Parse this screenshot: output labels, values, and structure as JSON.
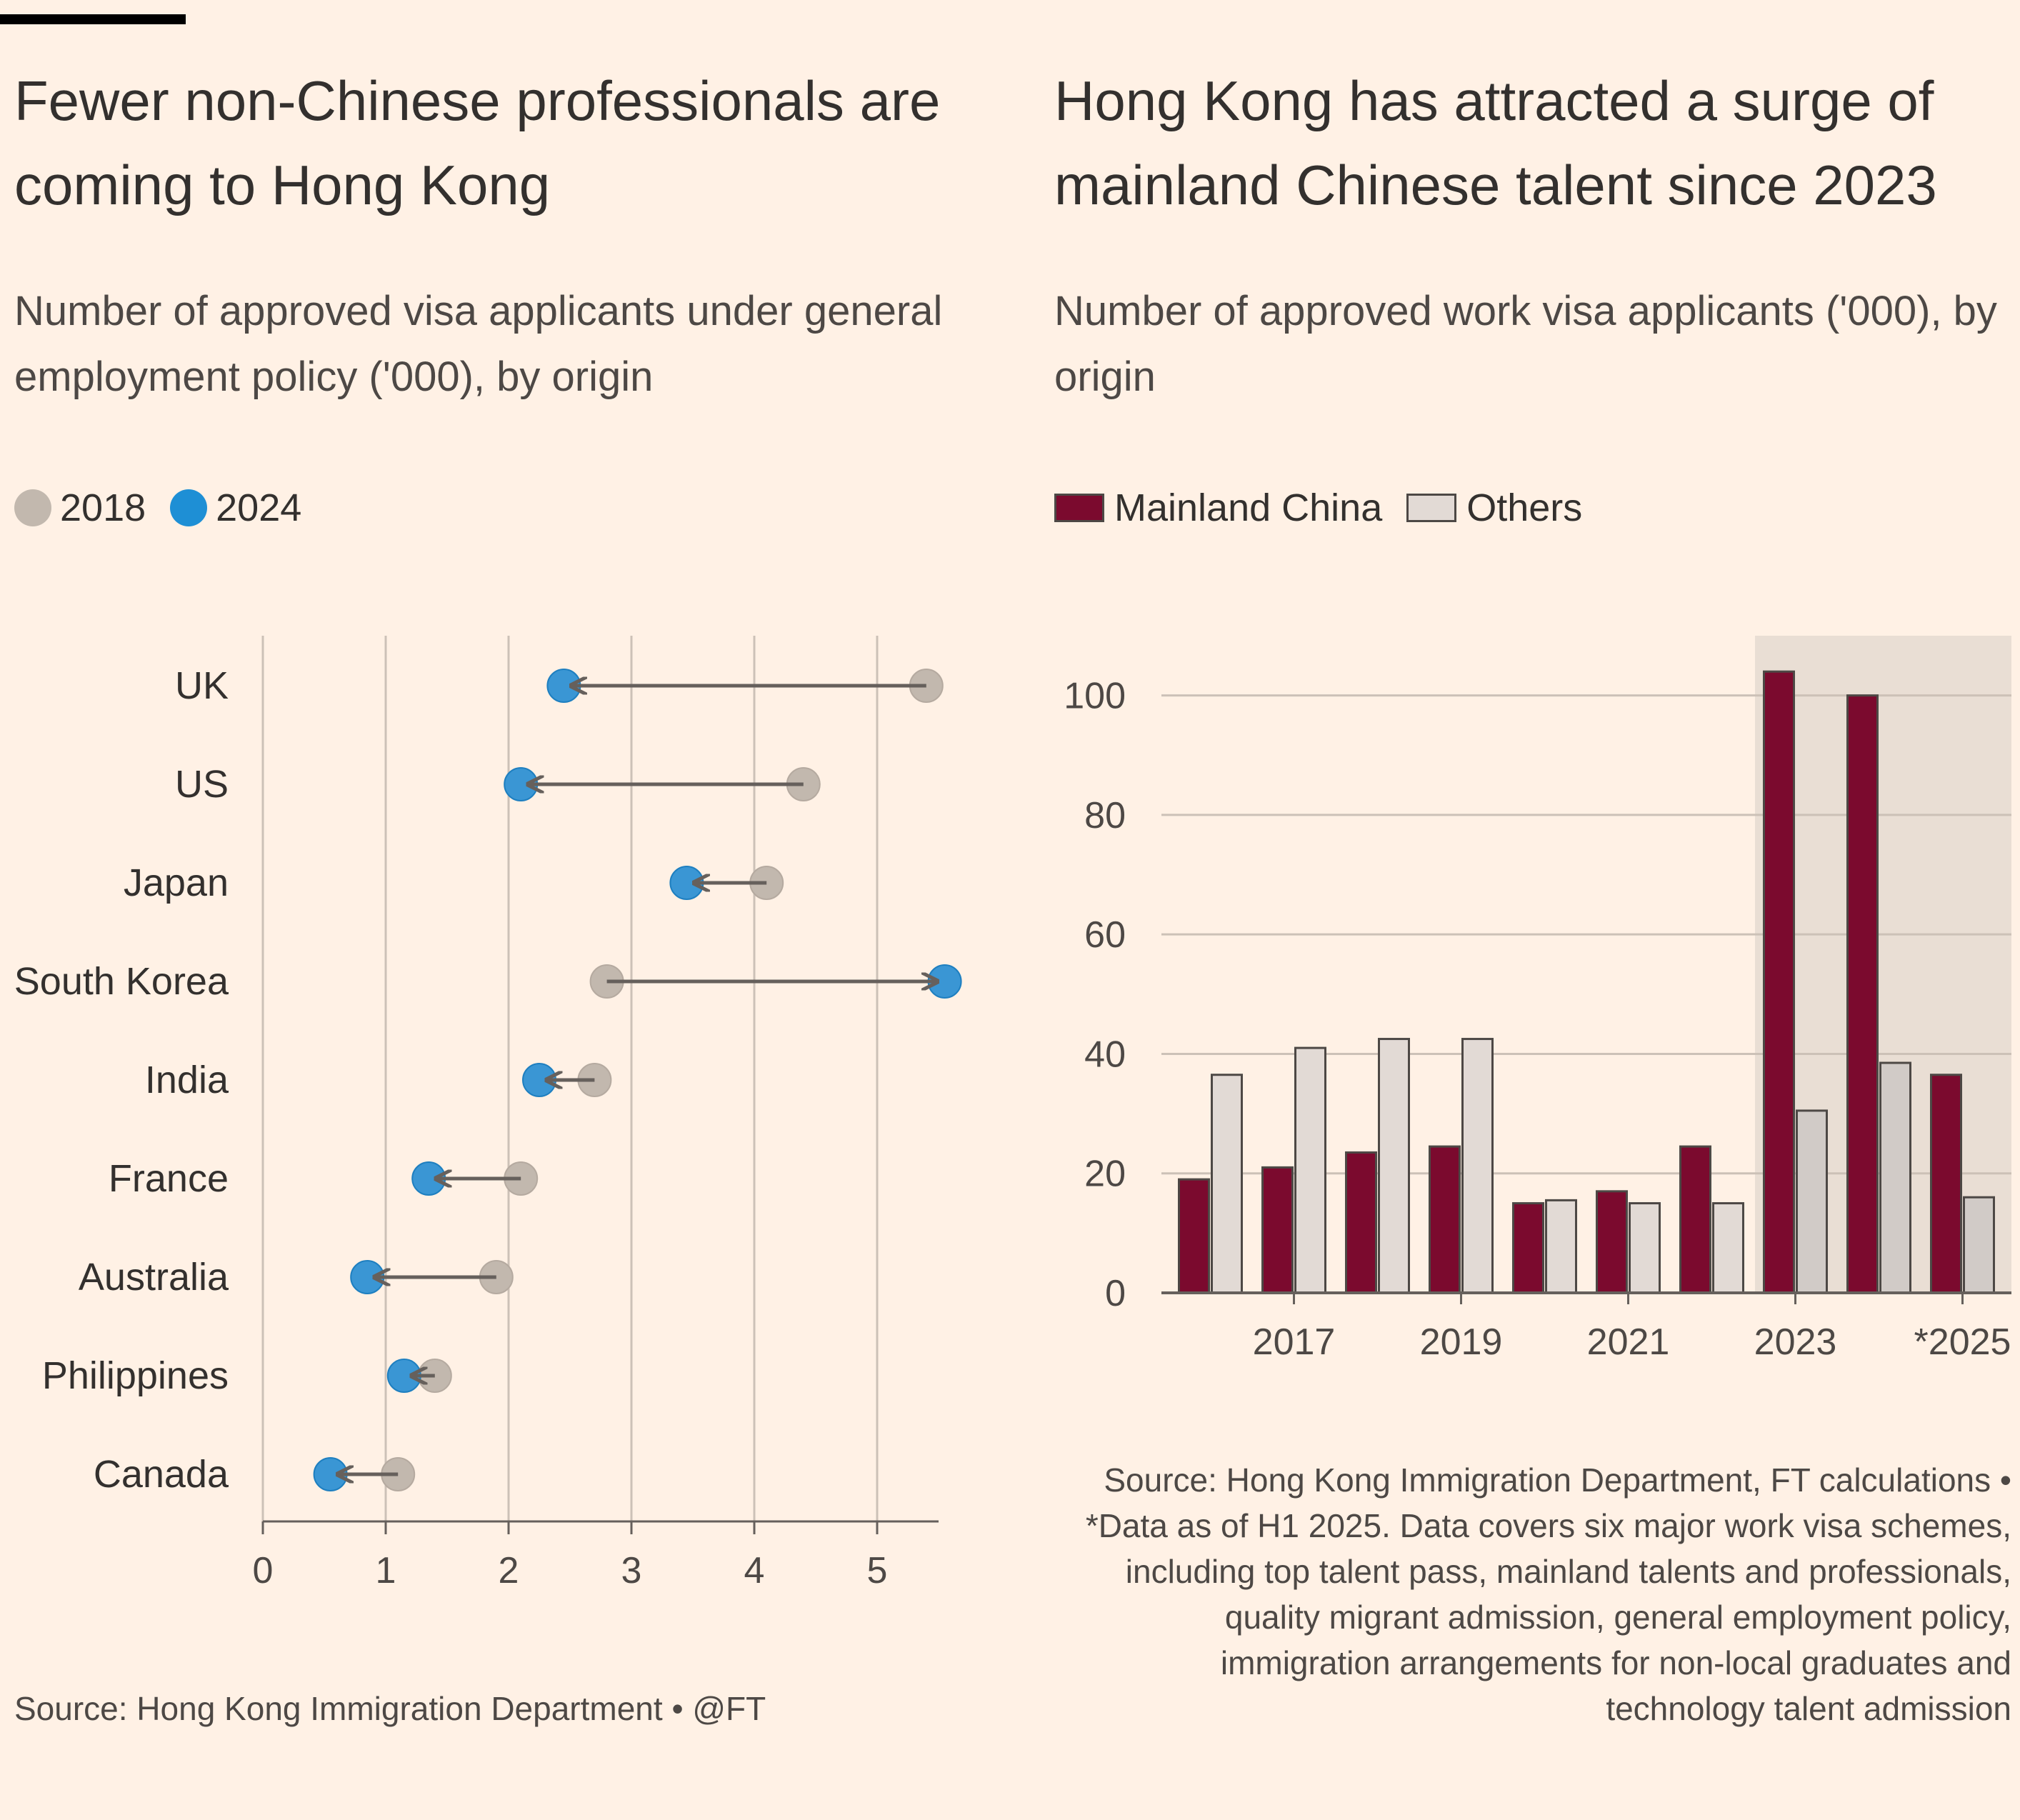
{
  "left_chart": {
    "title": "Fewer non-Chinese professionals are coming to Hong Kong",
    "subtitle": "Number of approved visa applicants under general employment policy ('000), by origin",
    "legend": [
      {
        "label": "2018",
        "color": "#c2b8ae"
      },
      {
        "label": "2024",
        "color": "#1e8fd5"
      }
    ],
    "source": "Source: Hong Kong Immigration Department • @FT"
  },
  "right_chart": {
    "title": "Hong Kong has attracted a surge of mainland Chinese talent since 2023",
    "subtitle": "Number of approved work visa applicants ('000), by origin",
    "legend": [
      {
        "label": "Mainland China",
        "color": "#7b0a2e"
      },
      {
        "label": "Others",
        "color": "#e2dad5"
      }
    ],
    "source": "Source: Hong Kong Immigration Department, FT calculations • *Data as of H1 2025. Data covers six major work visa schemes, including top talent pass, mainland talents and professionals, quality migrant admission, general employment policy, immigration arrangements for non-local graduates and technology talent admission"
  },
  "chart_data": [
    {
      "type": "dot-arrow",
      "title": "Fewer non-Chinese professionals are coming to Hong Kong",
      "xlabel": "",
      "ylabel": "",
      "xlim": [
        0,
        5.5
      ],
      "xticks": [
        0,
        1,
        2,
        3,
        4,
        5
      ],
      "series_names": [
        "2018",
        "2024"
      ],
      "categories": [
        "UK",
        "US",
        "Japan",
        "South Korea",
        "India",
        "France",
        "Australia",
        "Philippines",
        "Canada"
      ],
      "values_2018": [
        5.4,
        4.4,
        4.1,
        2.8,
        2.7,
        2.1,
        1.9,
        1.4,
        1.1
      ],
      "values_2024": [
        2.45,
        2.1,
        3.45,
        5.55,
        2.25,
        1.35,
        0.85,
        1.15,
        0.55
      ]
    },
    {
      "type": "bar",
      "title": "Hong Kong has attracted a surge of mainland Chinese talent since 2023",
      "categories": [
        "2016",
        "2017",
        "2018",
        "2019",
        "2020",
        "2021",
        "2022",
        "2023",
        "2024",
        "*2025"
      ],
      "tick_labels": [
        "2017",
        "2019",
        "2021",
        "2023",
        "*2025"
      ],
      "series": [
        {
          "name": "Mainland China",
          "values": [
            19,
            21,
            23.5,
            24.5,
            15,
            17,
            24.5,
            104,
            100,
            36.5
          ]
        },
        {
          "name": "Others",
          "values": [
            36.5,
            41,
            42.5,
            42.5,
            15.5,
            15,
            15,
            30.5,
            38.5,
            16
          ]
        }
      ],
      "ylim": [
        0,
        110
      ],
      "yticks": [
        0,
        20,
        40,
        60,
        80,
        100
      ],
      "highlight_from": "2023",
      "xlabel": "",
      "ylabel": ""
    }
  ]
}
